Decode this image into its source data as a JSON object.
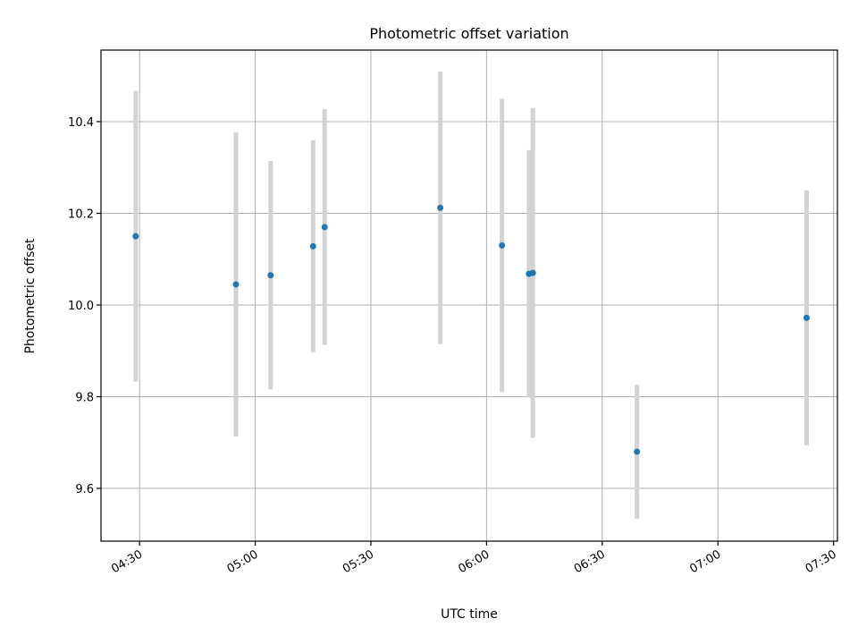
{
  "chart_data": {
    "type": "scatter",
    "title": "Photometric offset variation",
    "xlabel": "UTC time",
    "ylabel": "Photometric offset",
    "grid": true,
    "x_ticks": [
      "04:30",
      "05:00",
      "05:30",
      "06:00",
      "06:30",
      "07:00",
      "07:30"
    ],
    "y_ticks": [
      "9.6",
      "9.8",
      "10.0",
      "10.2",
      "10.4"
    ],
    "xlim": [
      "04:20",
      "07:31"
    ],
    "ylim": [
      9.485,
      10.556
    ],
    "colors": {
      "points": "#1f77b4",
      "errorbars": "#d3d3d3"
    },
    "points": [
      {
        "x": "04:29",
        "y": 10.15,
        "yerr": 0.317
      },
      {
        "x": "04:55",
        "y": 10.045,
        "yerr": 0.332
      },
      {
        "x": "05:04",
        "y": 10.065,
        "yerr": 0.249
      },
      {
        "x": "05:15",
        "y": 10.128,
        "yerr": 0.231
      },
      {
        "x": "05:18",
        "y": 10.17,
        "yerr": 0.257
      },
      {
        "x": "05:48",
        "y": 10.212,
        "yerr": 0.297
      },
      {
        "x": "06:04",
        "y": 10.13,
        "yerr": 0.32
      },
      {
        "x": "06:11",
        "y": 10.068,
        "yerr": 0.27
      },
      {
        "x": "06:12",
        "y": 10.07,
        "yerr": 0.36
      },
      {
        "x": "06:39",
        "y": 9.68,
        "yerr": 0.146
      },
      {
        "x": "07:23",
        "y": 9.972,
        "yerr": 0.278
      }
    ]
  }
}
